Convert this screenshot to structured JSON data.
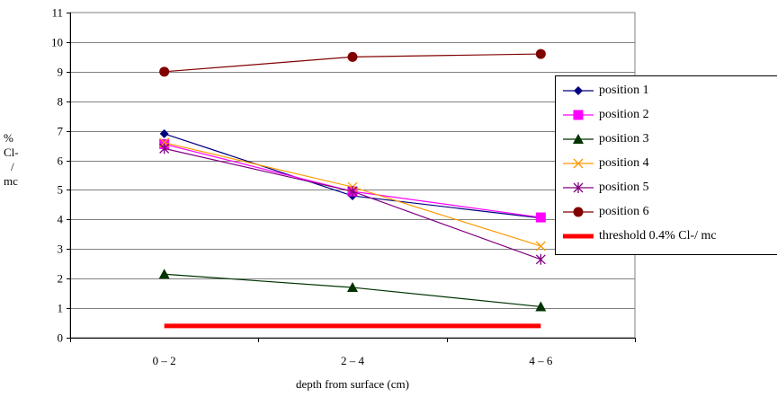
{
  "chart_data": {
    "type": "line",
    "categories": [
      "0 – 2",
      "2 – 4",
      "4 – 6"
    ],
    "xlabel": "depth from surface (cm)",
    "ylabel_lines": [
      "%",
      "Cl-",
      "/",
      "mc"
    ],
    "ylim": [
      0,
      11
    ],
    "yticks": [
      "0",
      "1",
      "2",
      "3",
      "4",
      "5",
      "6",
      "7",
      "8",
      "9",
      "10",
      "11"
    ],
    "grid": true,
    "legend_position": "right",
    "series": [
      {
        "name": "position 1",
        "values": [
          6.9,
          4.8,
          4.05
        ],
        "color": "#000080",
        "marker": "diamond"
      },
      {
        "name": "position 2",
        "values": [
          6.55,
          4.95,
          4.07
        ],
        "color": "#ff00ff",
        "marker": "square"
      },
      {
        "name": "position 3",
        "values": [
          2.15,
          1.7,
          1.05
        ],
        "color": "#003300",
        "marker": "triangle"
      },
      {
        "name": "position 4",
        "values": [
          6.6,
          5.1,
          3.1
        ],
        "color": "#ff9900",
        "marker": "x"
      },
      {
        "name": "position 5",
        "values": [
          6.4,
          4.95,
          2.65
        ],
        "color": "#800080",
        "marker": "star"
      },
      {
        "name": "position 6",
        "values": [
          9.0,
          9.5,
          9.6
        ],
        "color": "#800000",
        "marker": "circle"
      },
      {
        "name": "threshold 0.4% Cl-/ mc",
        "values": [
          0.4,
          0.4,
          0.4
        ],
        "color": "#ff0000",
        "marker": "none",
        "thick": true
      }
    ]
  }
}
